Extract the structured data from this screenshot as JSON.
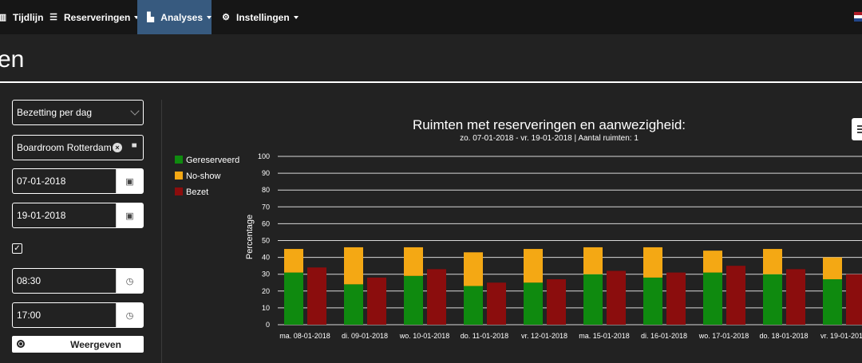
{
  "navbar": {
    "items": [
      {
        "label": "Tijdlijn",
        "icon": "timeline-icon"
      },
      {
        "label": "Reserveringen",
        "icon": "list-icon"
      },
      {
        "label": "Analyses",
        "icon": "bar-chart-icon"
      },
      {
        "label": "Instellingen",
        "icon": "gear-icon"
      }
    ],
    "active_color": "#375a7f"
  },
  "page": {
    "title": "en"
  },
  "form": {
    "report_type": "Bezetting per dag",
    "room": "Boardroom Rotterdam",
    "start_date": "07-01-2018",
    "end_date": "19-01-2018",
    "checkbox_checked": true,
    "start_time": "08:30",
    "end_time": "17:00",
    "submit_label": "Weergeven"
  },
  "chart_data": {
    "type": "bar",
    "title": "Ruimten met reserveringen en aanwezigheid:",
    "subtitle": "zo. 07-01-2018 - vr. 19-01-2018 | Aantal ruimten: 1",
    "ylabel": "Percentage",
    "ylim": [
      0,
      100
    ],
    "yticks": [
      0,
      10,
      20,
      30,
      40,
      50,
      60,
      70,
      80,
      90,
      100
    ],
    "grid": true,
    "legend_position": "left",
    "categories": [
      "ma. 08-01-2018",
      "di. 09-01-2018",
      "wo. 10-01-2018",
      "do. 11-01-2018",
      "vr. 12-01-2018",
      "ma. 15-01-2018",
      "di. 16-01-2018",
      "wo. 17-01-2018",
      "do. 18-01-2018",
      "vr. 19-01-2018"
    ],
    "series": [
      {
        "name": "Gereserveerd",
        "color": "#0f8a0f",
        "stack": "a",
        "values": [
          31,
          24,
          29,
          23,
          25,
          30,
          28,
          31,
          30,
          27
        ]
      },
      {
        "name": "No-show",
        "color": "#f4a814",
        "stack": "a",
        "values": [
          14,
          22,
          17,
          20,
          20,
          16,
          18,
          13,
          15,
          13
        ]
      },
      {
        "name": "Bezet",
        "color": "#8b0d0d",
        "stack": "b",
        "values": [
          34,
          28,
          33,
          25,
          27,
          32,
          31,
          35,
          33,
          30
        ]
      }
    ]
  }
}
